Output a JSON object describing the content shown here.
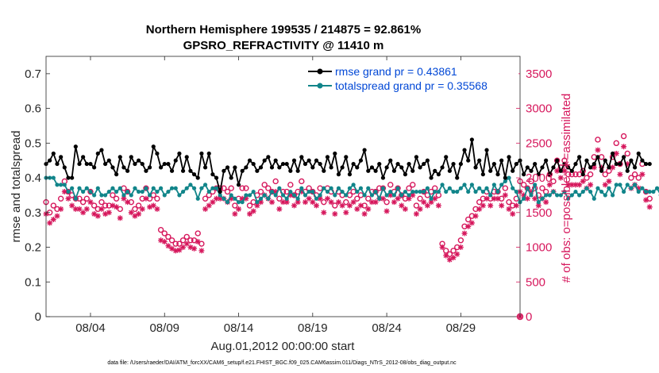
{
  "chart_data": {
    "type": "line",
    "title": "Northern Hemisphere 199535 / 214875 = 92.861%",
    "subtitle": "GPSRO_REFRACTIVITY @ 11410 m",
    "xlabel": "Aug.01,2012 00:00:00 start",
    "ylabel": "rmse and totalspread",
    "y2label": "# of obs: o=possible; ∗=assimilated",
    "footer": "data file: /Users/raeder/DAI/ATM_forcXX/CAM6_setup/f.e21.FHIST_BGC.f09_025.CAM6assim.011/Diags_NTrS_2012-08/obs_diag_output.nc",
    "xlim": [
      1,
      33
    ],
    "ylim": [
      0,
      0.75
    ],
    "y2lim": [
      0,
      3750
    ],
    "x_ticks": [
      4,
      9,
      14,
      19,
      24,
      29
    ],
    "x_tick_labels": [
      "08/04",
      "08/09",
      "08/14",
      "08/19",
      "08/24",
      "08/29"
    ],
    "y_ticks": [
      0,
      0.1,
      0.2,
      0.3,
      0.4,
      0.5,
      0.6,
      0.7
    ],
    "y_tick_labels": [
      "0",
      "0.1",
      "0.2",
      "0.3",
      "0.4",
      "0.5",
      "0.6",
      "0.7"
    ],
    "y2_ticks": [
      0,
      500,
      1000,
      1500,
      2000,
      2500,
      3000,
      3500
    ],
    "y2_tick_labels": [
      "0",
      "500",
      "1000",
      "1500",
      "2000",
      "2500",
      "3000",
      "3500"
    ],
    "legend_position": "top-right",
    "grid": false,
    "x_start": 1.0,
    "x_step": 0.25,
    "series": [
      {
        "name": "rmse grand pr = 0.43861",
        "axis": "left",
        "color": "#000000",
        "marker": "circle",
        "values": [
          0.44,
          0.45,
          0.47,
          0.44,
          0.46,
          0.43,
          0.4,
          0.4,
          0.49,
          0.44,
          0.46,
          0.44,
          0.44,
          0.43,
          0.47,
          0.48,
          0.44,
          0.45,
          0.43,
          0.41,
          0.46,
          0.43,
          0.42,
          0.46,
          0.44,
          0.45,
          0.44,
          0.42,
          0.43,
          0.49,
          0.47,
          0.43,
          0.44,
          0.44,
          0.42,
          0.45,
          0.47,
          0.42,
          0.46,
          0.42,
          0.41,
          0.4,
          0.47,
          0.43,
          0.47,
          0.41,
          0.4,
          0.36,
          0.42,
          0.43,
          0.4,
          0.43,
          0.38,
          0.42,
          0.43,
          0.45,
          0.44,
          0.42,
          0.43,
          0.45,
          0.46,
          0.43,
          0.45,
          0.43,
          0.44,
          0.44,
          0.42,
          0.45,
          0.42,
          0.46,
          0.44,
          0.45,
          0.43,
          0.45,
          0.44,
          0.42,
          0.46,
          0.43,
          0.47,
          0.41,
          0.43,
          0.46,
          0.41,
          0.44,
          0.43,
          0.45,
          0.48,
          0.42,
          0.43,
          0.42,
          0.44,
          0.4,
          0.43,
          0.45,
          0.42,
          0.44,
          0.43,
          0.41,
          0.44,
          0.42,
          0.46,
          0.43,
          0.44,
          0.45,
          0.4,
          0.42,
          0.41,
          0.43,
          0.46,
          0.42,
          0.44,
          0.4,
          0.44,
          0.48,
          0.45,
          0.51,
          0.43,
          0.45,
          0.41,
          0.48,
          0.42,
          0.44,
          0.41,
          0.45,
          0.4,
          0.46,
          0.42,
          0.44,
          0.45,
          0.41,
          0.43,
          0.42,
          0.44,
          0.41,
          0.43,
          0.45,
          0.41,
          0.43,
          0.45,
          0.42,
          0.44,
          0.43,
          0.42,
          0.44,
          0.46,
          0.41,
          0.45,
          0.43,
          0.44,
          0.46,
          0.42,
          0.45,
          0.43,
          0.47,
          0.44,
          0.44,
          0.46,
          0.42,
          0.45,
          0.43,
          0.47,
          0.45,
          0.44,
          0.44
        ]
      },
      {
        "name": "totalspread grand pr = 0.35568",
        "axis": "left",
        "color": "#11858a",
        "marker": "circle",
        "values": [
          0.4,
          0.4,
          0.4,
          0.38,
          0.38,
          0.38,
          0.36,
          0.37,
          0.34,
          0.37,
          0.36,
          0.37,
          0.36,
          0.35,
          0.37,
          0.35,
          0.35,
          0.36,
          0.37,
          0.36,
          0.37,
          0.35,
          0.36,
          0.35,
          0.37,
          0.36,
          0.36,
          0.37,
          0.35,
          0.37,
          0.36,
          0.37,
          0.35,
          0.36,
          0.37,
          0.37,
          0.35,
          0.36,
          0.37,
          0.38,
          0.37,
          0.34,
          0.37,
          0.38,
          0.36,
          0.37,
          0.37,
          0.35,
          0.34,
          0.33,
          0.35,
          0.34,
          0.33,
          0.33,
          0.35,
          0.35,
          0.36,
          0.33,
          0.34,
          0.35,
          0.34,
          0.36,
          0.35,
          0.37,
          0.35,
          0.34,
          0.36,
          0.35,
          0.34,
          0.37,
          0.35,
          0.36,
          0.36,
          0.34,
          0.35,
          0.37,
          0.36,
          0.37,
          0.35,
          0.37,
          0.36,
          0.35,
          0.37,
          0.38,
          0.36,
          0.37,
          0.35,
          0.37,
          0.35,
          0.36,
          0.34,
          0.37,
          0.35,
          0.36,
          0.35,
          0.37,
          0.35,
          0.36,
          0.35,
          0.36,
          0.36,
          0.36,
          0.36,
          0.37,
          0.34,
          0.36,
          0.36,
          0.38,
          0.36,
          0.37,
          0.36,
          0.36,
          0.37,
          0.38,
          0.36,
          0.38,
          0.36,
          0.37,
          0.36,
          0.37,
          0.35,
          0.38,
          0.36,
          0.38,
          0.39,
          0.4,
          0.37,
          0.36,
          0.33,
          0.34,
          0.37,
          0.35,
          0.38,
          0.33,
          0.34,
          0.35,
          0.35,
          0.36,
          0.35,
          0.35,
          0.36,
          0.34,
          0.35,
          0.36,
          0.35,
          0.36,
          0.37,
          0.36,
          0.34,
          0.37,
          0.36,
          0.35,
          0.37,
          0.35,
          0.38,
          0.38,
          0.36,
          0.38,
          0.37,
          0.38,
          0.36,
          0.37,
          0.36,
          0.36,
          0.36,
          0.37,
          0.35,
          0.34
        ]
      },
      {
        "name": "obs possible",
        "axis": "right",
        "color": "#d6175c",
        "marker": "o",
        "values": [
          1650,
          1500,
          1600,
          1550,
          1700,
          1950,
          1800,
          1750,
          1700,
          1700,
          1650,
          1700,
          1800,
          1600,
          1550,
          1650,
          1600,
          1600,
          1750,
          1700,
          1550,
          1850,
          1800,
          1650,
          1550,
          1600,
          1700,
          1850,
          1700,
          1750,
          1700,
          1250,
          1200,
          1150,
          1100,
          1050,
          1050,
          1100,
          1150,
          1100,
          1100,
          1200,
          1050,
          1700,
          1750,
          1800,
          1850,
          1850,
          1850,
          1800,
          1850,
          1600,
          1700,
          1850,
          1850,
          1600,
          1650,
          1750,
          1800,
          1900,
          1850,
          1800,
          1950,
          1700,
          1800,
          1800,
          1900,
          1750,
          1800,
          1950,
          1800,
          1850,
          1800,
          1750,
          1850,
          1650,
          1850,
          1800,
          1600,
          1800,
          1750,
          1650,
          1750,
          1800,
          1700,
          1750,
          1600,
          1700,
          1800,
          1800,
          1850,
          1850,
          1650,
          1900,
          1800,
          1850,
          1750,
          1700,
          1850,
          1900,
          1600,
          1700,
          1800,
          1750,
          1800,
          1850,
          1750,
          1050,
          950,
          900,
          950,
          1000,
          1100,
          1300,
          1400,
          1450,
          1550,
          1650,
          1700,
          1800,
          1700,
          1800,
          1800,
          1700,
          1850,
          1650,
          1600,
          1700,
          1950,
          1900,
          1850,
          1950,
          1850,
          1750,
          1850,
          1800,
          2050,
          1950,
          2250,
          2150,
          2250,
          2050,
          2050,
          2050,
          2050,
          2100,
          2000,
          2050,
          2300,
          2550,
          2300,
          2050,
          2100,
          2300,
          2500,
          2200,
          2600,
          2350,
          2000,
          2050,
          2000,
          2200,
          1800,
          1700
        ]
      },
      {
        "name": "obs assimilated",
        "axis": "right",
        "color": "#d6175c",
        "marker": "asterisk",
        "values": [
          1480,
          1350,
          1400,
          1450,
          1550,
          1800,
          1700,
          1600,
          1550,
          1550,
          1500,
          1550,
          1650,
          1480,
          1450,
          1550,
          1480,
          1500,
          1600,
          1580,
          1420,
          1700,
          1650,
          1500,
          1450,
          1480,
          1550,
          1700,
          1580,
          1600,
          1550,
          1100,
          1080,
          1020,
          980,
          950,
          960,
          1000,
          1050,
          1000,
          980,
          1080,
          950,
          1550,
          1600,
          1650,
          1700,
          1700,
          1700,
          1650,
          1700,
          1480,
          1550,
          1700,
          1700,
          1480,
          1520,
          1600,
          1650,
          1750,
          1700,
          1650,
          1800,
          1550,
          1650,
          1650,
          1750,
          1600,
          1650,
          1800,
          1650,
          1700,
          1650,
          1600,
          1700,
          1500,
          1700,
          1650,
          1480,
          1650,
          1600,
          1500,
          1600,
          1650,
          1550,
          1600,
          1480,
          1550,
          1650,
          1650,
          1700,
          1700,
          1520,
          1750,
          1650,
          1700,
          1600,
          1550,
          1700,
          1750,
          1480,
          1550,
          1650,
          1600,
          1650,
          1700,
          1600,
          1000,
          880,
          820,
          850,
          900,
          1000,
          1200,
          1300,
          1350,
          1450,
          1550,
          1600,
          1700,
          1600,
          1700,
          1700,
          1600,
          1750,
          1550,
          1480,
          1600,
          1800,
          1750,
          1700,
          1800,
          1700,
          1600,
          1700,
          1650,
          1900,
          1800,
          2100,
          2000,
          2100,
          1900,
          1900,
          1900,
          1900,
          1950,
          1850,
          1900,
          2150,
          2400,
          2150,
          1900,
          1950,
          2150,
          2350,
          2050,
          2450,
          2200,
          1850,
          1900,
          1850,
          2050,
          1680,
          1580
        ]
      }
    ]
  }
}
